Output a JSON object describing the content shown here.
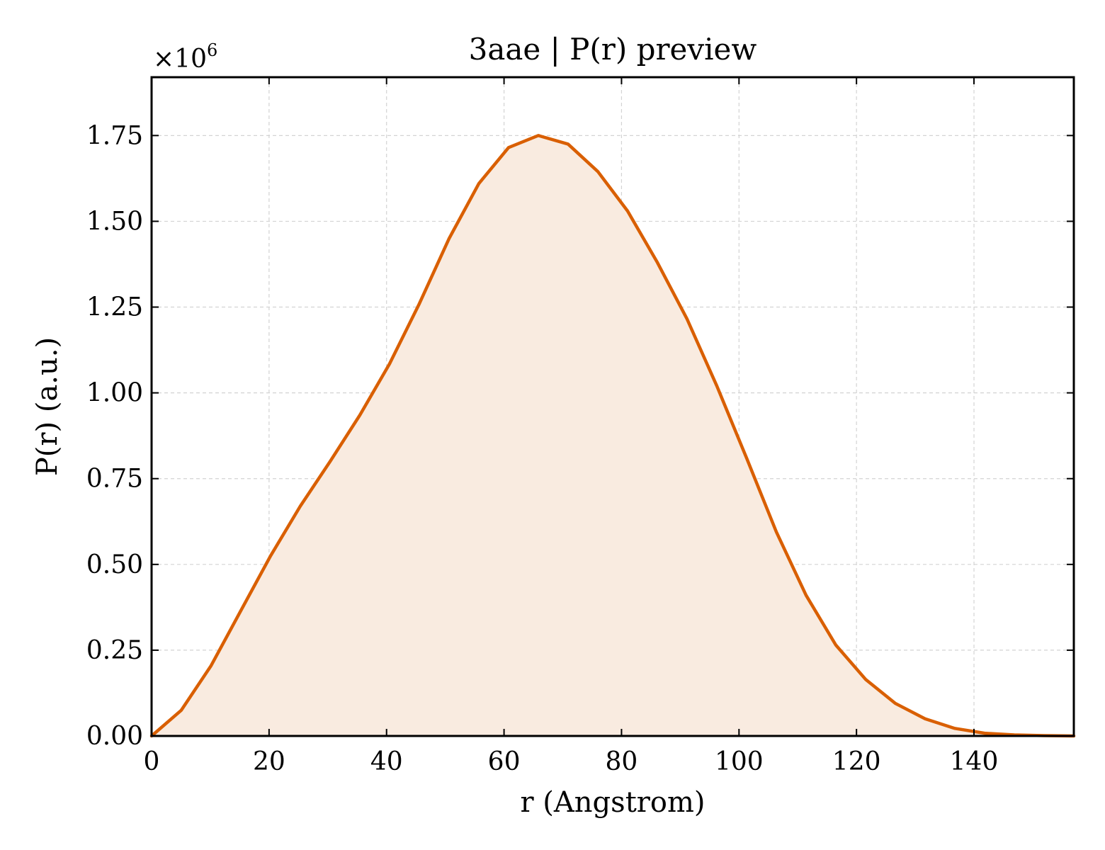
{
  "chart_data": {
    "type": "area",
    "title": "3aae | P(r) preview",
    "xlabel": "r (Angstrom)",
    "ylabel": "P(r) (a.u.)",
    "y_multiplier": "×10",
    "y_multiplier_exp": "6",
    "xlim": [
      0,
      157
    ],
    "ylim": [
      0,
      1.92
    ],
    "xticks": [
      0,
      20,
      40,
      60,
      80,
      100,
      120,
      140
    ],
    "xtick_labels": [
      "0",
      "20",
      "40",
      "60",
      "80",
      "100",
      "120",
      "140"
    ],
    "yticks": [
      0,
      0.25,
      0.5,
      0.75,
      1.0,
      1.25,
      1.5,
      1.75
    ],
    "ytick_labels": [
      "0.00",
      "0.25",
      "0.50",
      "0.75",
      "1.00",
      "1.25",
      "1.50",
      "1.75"
    ],
    "grid": true,
    "legend": "none",
    "line_color": "#d95f02",
    "fill_color": "#f9ebe0",
    "series": [
      {
        "x": [
          0,
          5.06,
          10.13,
          15.19,
          20.26,
          25.32,
          30.39,
          35.45,
          40.52,
          45.58,
          50.65,
          55.71,
          60.77,
          65.84,
          70.9,
          75.97,
          81.03,
          86.1,
          91.16,
          96.23,
          101.29,
          106.35,
          111.42,
          116.48,
          121.55,
          126.61,
          131.68,
          136.74,
          141.81,
          146.87,
          151.94,
          157.0
        ],
        "y": [
          0.0,
          0.075,
          0.205,
          0.365,
          0.525,
          0.67,
          0.8,
          0.935,
          1.085,
          1.26,
          1.45,
          1.61,
          1.715,
          1.75,
          1.725,
          1.645,
          1.53,
          1.38,
          1.215,
          1.02,
          0.81,
          0.595,
          0.41,
          0.265,
          0.165,
          0.095,
          0.05,
          0.022,
          0.008,
          0.003,
          0.001,
          0.0
        ]
      }
    ]
  }
}
